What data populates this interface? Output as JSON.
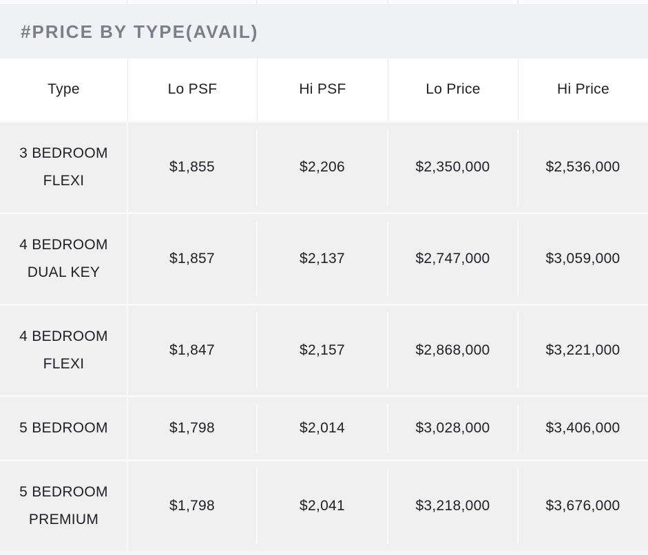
{
  "chart_data": {
    "type": "table",
    "title": "#PRICE BY TYPE(AVAIL)",
    "columns": [
      "Type",
      "Lo PSF",
      "Hi PSF",
      "Lo Price",
      "Hi Price"
    ],
    "rows": [
      [
        "3 BEDROOM FLEXI",
        "$1,855",
        "$2,206",
        "$2,350,000",
        "$2,536,000"
      ],
      [
        "4 BEDROOM DUAL KEY",
        "$1,857",
        "$2,137",
        "$2,747,000",
        "$3,059,000"
      ],
      [
        "4 BEDROOM FLEXI",
        "$1,847",
        "$2,157",
        "$2,868,000",
        "$3,221,000"
      ],
      [
        "5 BEDROOM",
        "$1,798",
        "$2,014",
        "$3,028,000",
        "$3,406,000"
      ],
      [
        "5 BEDROOM PREMIUM",
        "$1,798",
        "$2,041",
        "$3,218,000",
        "$3,676,000"
      ]
    ],
    "layout": {
      "header_row": true,
      "grid": "subtle-dividers",
      "legend": "none",
      "alignment": "center"
    }
  },
  "colors": {
    "page_bg": "#f4f5f8",
    "title_band_bg": "#f0f1f5",
    "title_text": "#798089",
    "header_bg": "#ffffff",
    "header_divider": "#e7e9ed",
    "row_bg": "#f0f0f1",
    "row_divider": "#f8f9fb",
    "cell_divider": "#f8f9fb",
    "cell_text": "#202124"
  }
}
